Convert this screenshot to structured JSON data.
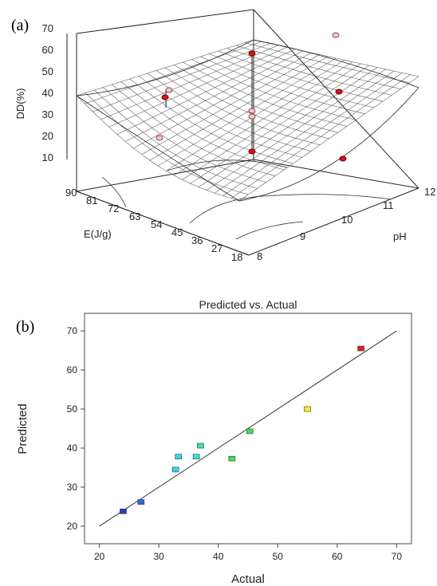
{
  "panel_a": {
    "label": "(a)",
    "z_axis_label": "DD(%)",
    "z_ticks": [
      "10",
      "20",
      "30",
      "40",
      "50",
      "60",
      "70"
    ],
    "e_axis_label": "E(J/g)",
    "e_ticks": [
      "90",
      "81",
      "72",
      "63",
      "54",
      "45",
      "36",
      "27",
      "18"
    ],
    "ph_axis_label": "pH",
    "ph_ticks": [
      "8",
      "9",
      "10",
      "11",
      "12"
    ]
  },
  "panel_b": {
    "label": "(b)"
  },
  "chart_data": [
    {
      "type": "surface",
      "zlabel": "DD(%)",
      "xlabel": "E(J/g)",
      "ylabel": "pH",
      "xlim": [
        18,
        90
      ],
      "ylim": [
        8,
        12
      ],
      "zlim": [
        10,
        70
      ],
      "points_z": [
        66,
        68,
        39,
        41,
        31,
        36,
        48,
        14,
        17,
        27
      ]
    },
    {
      "type": "scatter",
      "title": "Predicted vs. Actual",
      "xlabel": "Actual",
      "ylabel": "Predicted",
      "xlim": [
        20,
        70
      ],
      "ylim": [
        20,
        70
      ],
      "xticks": [
        20,
        30,
        40,
        50,
        60,
        70
      ],
      "yticks": [
        20,
        30,
        40,
        50,
        60,
        70
      ],
      "reference_line": [
        [
          20,
          20
        ],
        [
          70,
          70
        ]
      ],
      "points": [
        {
          "x": 24.0,
          "y": 23.8,
          "color": "#1f3fd0"
        },
        {
          "x": 27.0,
          "y": 26.2,
          "color": "#2a6be0"
        },
        {
          "x": 32.8,
          "y": 34.5,
          "color": "#33d6f0"
        },
        {
          "x": 33.3,
          "y": 37.8,
          "color": "#33d6f0"
        },
        {
          "x": 36.3,
          "y": 37.8,
          "color": "#33e6c8"
        },
        {
          "x": 37.0,
          "y": 40.6,
          "color": "#33e6a8"
        },
        {
          "x": 42.3,
          "y": 37.3,
          "color": "#44dd55"
        },
        {
          "x": 45.3,
          "y": 44.3,
          "color": "#44dd55"
        },
        {
          "x": 55.0,
          "y": 50.0,
          "color": "#ffee22"
        },
        {
          "x": 64.0,
          "y": 65.5,
          "color": "#e02020"
        }
      ]
    }
  ]
}
